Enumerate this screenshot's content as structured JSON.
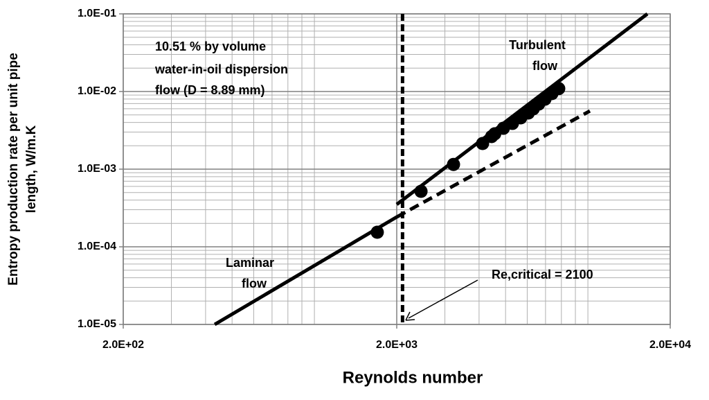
{
  "chart_data": {
    "type": "scatter",
    "x_label": "Reynolds number",
    "y_label": [
      "Entropy production rate per unit pipe",
      "length, W/m.K"
    ],
    "x_log": true,
    "y_log": true,
    "grid": true,
    "color": "#000000",
    "xlim": [
      200,
      20000
    ],
    "xticks": [
      {
        "value": 200,
        "label": "2.0E+02"
      },
      {
        "value": 2000,
        "label": "2.0E+03"
      },
      {
        "value": 20000,
        "label": "2.0E+04"
      }
    ],
    "ylim": [
      1e-05,
      0.1
    ],
    "yticks": [
      {
        "value": 1e-05,
        "label": "1.0E-05"
      },
      {
        "value": 0.0001,
        "label": "1.0E-04"
      },
      {
        "value": 0.001,
        "label": "1.0E-03"
      },
      {
        "value": 0.01,
        "label": "1.0E-02"
      },
      {
        "value": 0.1,
        "label": "1.0E-01"
      }
    ],
    "points": {
      "x": [
        1698,
        2454,
        3226,
        4121,
        4446,
        4563,
        4908,
        5297,
        5679,
        6055,
        6311,
        6609,
        6966,
        7386,
        7823
      ],
      "y": [
        0.000154,
        0.000518,
        0.00115,
        0.00214,
        0.00263,
        0.00285,
        0.00336,
        0.00388,
        0.00458,
        0.00529,
        0.00598,
        0.0069,
        0.00797,
        0.0094,
        0.0109
      ]
    },
    "lines": [
      {
        "style": "solid",
        "x": [
          432,
          2000
        ],
        "y": [
          1e-05,
          0.000242
        ]
      },
      {
        "style": "dashed",
        "x": [
          2000,
          10170
        ],
        "y": [
          0.000242,
          0.00562
        ]
      },
      {
        "style": "solid",
        "x": [
          2000,
          16500
        ],
        "y": [
          0.000351,
          0.1
        ]
      }
    ],
    "critical_re": 2100,
    "annotations": [
      "10.51 % by volume",
      "water-in-oil dispersion",
      "flow (D = 8.89 mm)",
      "Turbulent",
      "flow",
      "Laminar",
      "flow",
      "Re,critical = 2100"
    ]
  }
}
